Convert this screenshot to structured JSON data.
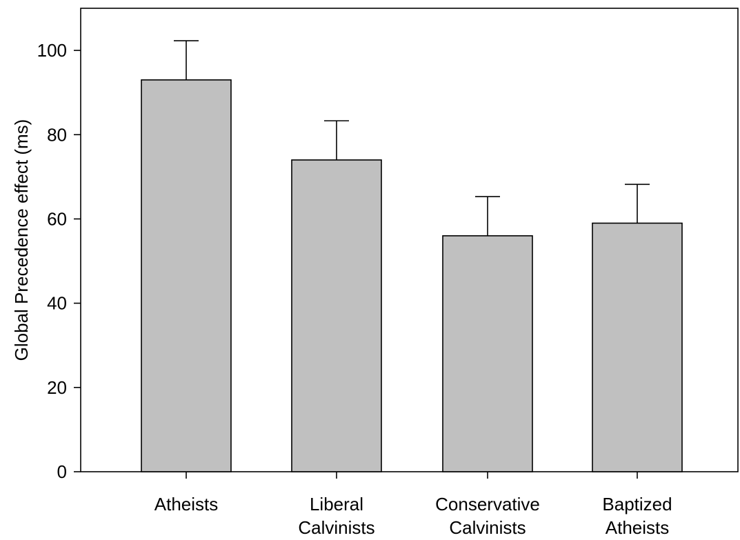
{
  "chart_data": {
    "type": "bar",
    "title": "",
    "xlabel": "",
    "ylabel": "Global Precedence effect (ms)",
    "categories": [
      [
        "Atheists"
      ],
      [
        "Liberal",
        "Calvinists"
      ],
      [
        "Conservative",
        "Calvinists"
      ],
      [
        "Baptized",
        "Atheists"
      ]
    ],
    "values": [
      93,
      74,
      56,
      59
    ],
    "errors": [
      9.3,
      9.3,
      9.3,
      9.2
    ],
    "ylim": [
      0,
      110
    ],
    "yticks": [
      0,
      20,
      40,
      60,
      80,
      100
    ],
    "grid": false,
    "legend": "none",
    "bar_color": "#c0c0c0",
    "edge_color": "#000000"
  }
}
